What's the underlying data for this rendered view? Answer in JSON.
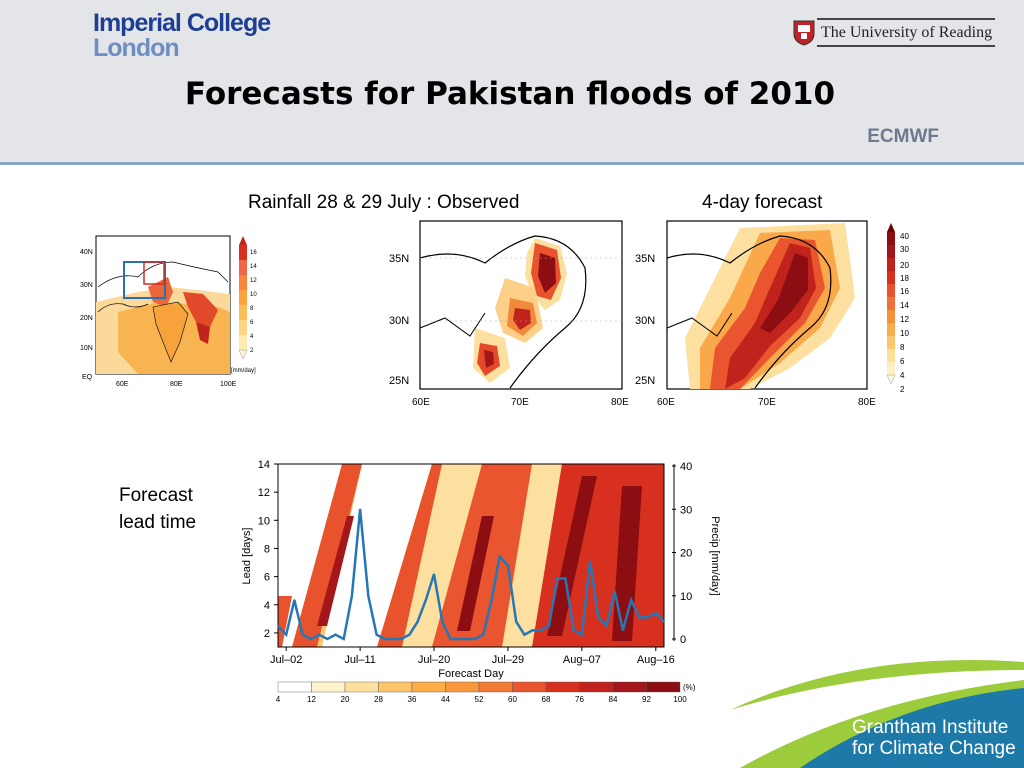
{
  "header": {
    "logo_left_line1": "Imperial College",
    "logo_left_line2": "London",
    "logo_right": "The University of Reading",
    "title": "Forecasts for Pakistan floods of 2010",
    "source": "ECMWF"
  },
  "captions": {
    "observed": "Rainfall 28 & 29 July  : Observed",
    "forecast": "4-day forecast",
    "lead_line1": "Forecast",
    "lead_line2": "lead time"
  },
  "small_map": {
    "lat_labels": [
      "40N",
      "30N",
      "20N",
      "10N",
      "EQ"
    ],
    "lon_labels": [
      "60E",
      "80E",
      "100E"
    ],
    "colorbar_ticks": [
      "16",
      "14",
      "12",
      "10",
      "8",
      "6",
      "4",
      "2"
    ],
    "unit": "[mm/day]"
  },
  "region_maps": {
    "lat_labels": [
      "35N",
      "30N",
      "25N"
    ],
    "lon_labels": [
      "60E",
      "70E",
      "80E"
    ],
    "colorbar_ticks": [
      "40",
      "30",
      "20",
      "18",
      "16",
      "14",
      "12",
      "10",
      "8",
      "6",
      "4",
      "2"
    ]
  },
  "hovmoller": {
    "ylabel": "Lead [days]",
    "y2label": "Precip [mm/day]",
    "xlabel": "Forecast Day",
    "y_ticks": [
      "14",
      "12",
      "10",
      "8",
      "6",
      "4",
      "2"
    ],
    "y2_ticks": [
      "40",
      "30",
      "20",
      "10",
      "0"
    ],
    "x_ticks": [
      "Jul–02",
      "Jul–11",
      "Jul–20",
      "Jul–29",
      "Aug–07",
      "Aug–16"
    ],
    "colorbar_ticks": [
      "4",
      "12",
      "20",
      "28",
      "36",
      "44",
      "52",
      "60",
      "68",
      "76",
      "84",
      "92",
      "100"
    ],
    "colorbar_unit": "(%)"
  },
  "footer": {
    "line1": "Grantham Institute",
    "line2": "for Climate Change"
  },
  "chart_data": {
    "type": "line",
    "title": "",
    "xlabel": "Forecast Day",
    "ylabel": "Precip [mm/day]",
    "x": [
      "Jul-01",
      "Jul-02",
      "Jul-03",
      "Jul-04",
      "Jul-05",
      "Jul-06",
      "Jul-07",
      "Jul-08",
      "Jul-09",
      "Jul-10",
      "Jul-11",
      "Jul-12",
      "Jul-13",
      "Jul-14",
      "Jul-15",
      "Jul-16",
      "Jul-17",
      "Jul-18",
      "Jul-19",
      "Jul-20",
      "Jul-21",
      "Jul-22",
      "Jul-23",
      "Jul-24",
      "Jul-25",
      "Jul-26",
      "Jul-27",
      "Jul-28",
      "Jul-29",
      "Jul-30",
      "Jul-31",
      "Aug-01",
      "Aug-02",
      "Aug-03",
      "Aug-04",
      "Aug-05",
      "Aug-06",
      "Aug-07",
      "Aug-08",
      "Aug-09",
      "Aug-10",
      "Aug-11",
      "Aug-12",
      "Aug-13",
      "Aug-14",
      "Aug-15",
      "Aug-16",
      "Aug-17"
    ],
    "series": [
      {
        "values": [
          3,
          1,
          9,
          1,
          0,
          1,
          0,
          1,
          0,
          10,
          30,
          10,
          1,
          0,
          0,
          0,
          1,
          4,
          9,
          15,
          4,
          0,
          0,
          0,
          0,
          1,
          9,
          19,
          17,
          4,
          1,
          2,
          2,
          3,
          14,
          14,
          2,
          1,
          18,
          5,
          3,
          11,
          2,
          9,
          5,
          5,
          6,
          4
        ]
      }
    ],
    "ylim": [
      0,
      40
    ],
    "secondary_field": {
      "type": "heatmap",
      "ylabel": "Lead [days]",
      "ylim": [
        1,
        14
      ],
      "colorbar": [
        4,
        12,
        20,
        28,
        36,
        44,
        52,
        60,
        68,
        76,
        84,
        92,
        100
      ],
      "colorbar_unit": "(%)"
    }
  }
}
